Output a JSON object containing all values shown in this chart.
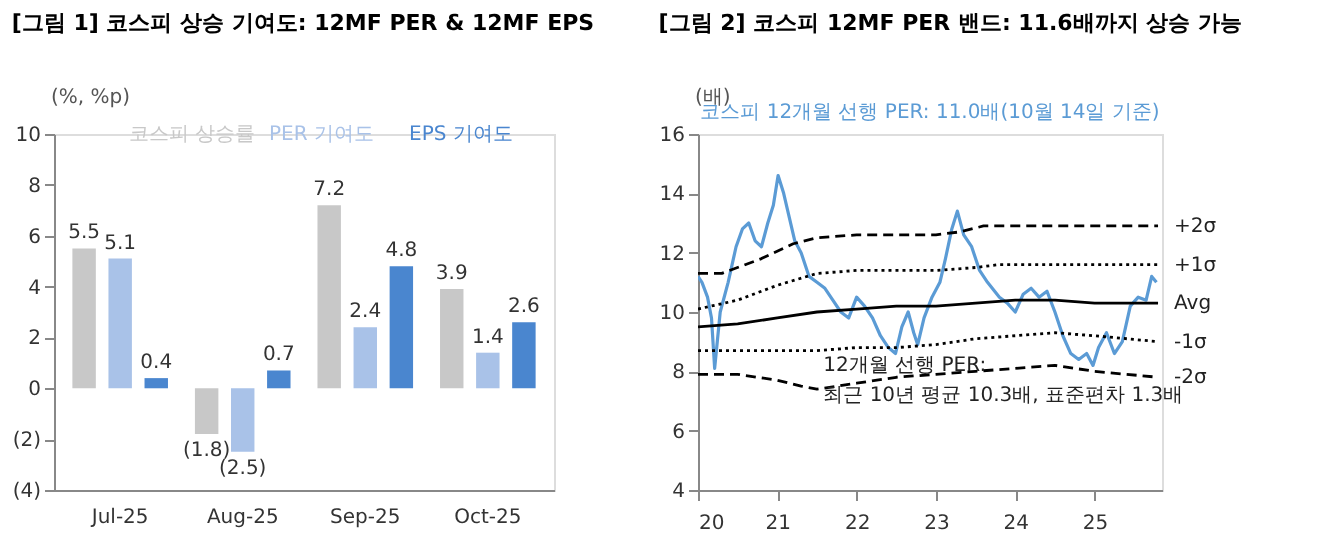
{
  "chart_data": [
    {
      "type": "bar",
      "title": "[그림 1] 코스피 상승 기여도: 12MF PER & 12MF EPS",
      "ylabel": "(%, %p)",
      "categories": [
        "Jul-25",
        "Aug-25",
        "Sep-25",
        "Oct-25"
      ],
      "series": [
        {
          "name": "코스피 상승률",
          "color": "#c8c8c8",
          "values": [
            5.5,
            -1.8,
            7.2,
            3.9
          ],
          "value_labels": [
            "5.5",
            "(1.8)",
            "7.2",
            "3.9"
          ]
        },
        {
          "name": "PER 기여도",
          "color": "#a9c2e8",
          "values": [
            5.1,
            -2.5,
            2.4,
            1.4
          ],
          "value_labels": [
            "5.1",
            "(2.5)",
            "2.4",
            "1.4"
          ]
        },
        {
          "name": "EPS 기여도",
          "color": "#4a86cf",
          "values": [
            0.4,
            0.7,
            4.8,
            2.6
          ],
          "value_labels": [
            "0.4",
            "0.7",
            "4.8",
            "2.6"
          ]
        }
      ],
      "ylim": [
        -4,
        10
      ],
      "yticks": [
        {
          "value": -4,
          "label": "(4)"
        },
        {
          "value": -2,
          "label": "(2)"
        },
        0,
        2,
        4,
        6,
        8,
        10
      ],
      "legend": "top",
      "grid": false
    },
    {
      "type": "line",
      "title": "[그림 2] 코스피 12MF PER 밴드: 11.6배까지 상승 가능",
      "ylabel": "(배)",
      "series": [
        {
          "name": "코스피 12개월 선행 PER: 11.0배(10월 14일 기준)",
          "color": "#5b9bd5",
          "line_style": "solid",
          "x": [
            2020.0,
            2020.05,
            2020.12,
            2020.17,
            2020.21,
            2020.28,
            2020.38,
            2020.48,
            2020.56,
            2020.64,
            2020.72,
            2020.8,
            2020.88,
            2020.95,
            2021.01,
            2021.08,
            2021.15,
            2021.22,
            2021.3,
            2021.4,
            2021.5,
            2021.6,
            2021.7,
            2021.8,
            2021.9,
            2022.0,
            2022.1,
            2022.2,
            2022.3,
            2022.4,
            2022.49,
            2022.57,
            2022.65,
            2022.72,
            2022.77,
            2022.85,
            2022.95,
            2023.05,
            2023.12,
            2023.2,
            2023.27,
            2023.35,
            2023.45,
            2023.55,
            2023.65,
            2023.8,
            2023.9,
            2024.0,
            2024.1,
            2024.2,
            2024.3,
            2024.4,
            2024.5,
            2024.6,
            2024.7,
            2024.8,
            2024.9,
            2024.98,
            2025.05,
            2025.15,
            2025.25,
            2025.35,
            2025.45,
            2025.55,
            2025.65,
            2025.72,
            2025.78
          ],
          "values": [
            11.2,
            11.0,
            10.5,
            9.8,
            8.1,
            10.0,
            11.0,
            12.2,
            12.8,
            13.0,
            12.4,
            12.2,
            13.0,
            13.6,
            14.6,
            14.0,
            13.2,
            12.4,
            12.0,
            11.2,
            11.0,
            10.8,
            10.4,
            10.0,
            9.8,
            10.5,
            10.2,
            9.8,
            9.2,
            8.8,
            8.6,
            9.5,
            10.0,
            9.3,
            8.9,
            9.8,
            10.5,
            11.0,
            11.8,
            12.8,
            13.4,
            12.6,
            12.2,
            11.4,
            11.0,
            10.5,
            10.3,
            10.0,
            10.6,
            10.8,
            10.5,
            10.7,
            10.0,
            9.2,
            8.6,
            8.4,
            8.6,
            8.2,
            8.8,
            9.3,
            8.6,
            9.0,
            10.2,
            10.5,
            10.4,
            11.2,
            11.0
          ]
        },
        {
          "name": "+2σ",
          "color": "#000000",
          "line_style": "dashed",
          "x": [
            2020.0,
            2020.3,
            2020.8,
            2021.2,
            2021.5,
            2022.0,
            2022.5,
            2023.0,
            2023.3,
            2023.6,
            2024.0,
            2024.5,
            2025.0,
            2025.8
          ],
          "values": [
            11.3,
            11.3,
            11.8,
            12.3,
            12.5,
            12.6,
            12.6,
            12.6,
            12.7,
            12.9,
            12.9,
            12.9,
            12.9,
            12.9
          ]
        },
        {
          "name": "+1σ",
          "color": "#000000",
          "line_style": "dotted",
          "x": [
            2020.0,
            2020.5,
            2021.0,
            2021.5,
            2022.0,
            2022.5,
            2023.0,
            2023.5,
            2023.8,
            2024.5,
            2025.0,
            2025.8
          ],
          "values": [
            10.1,
            10.4,
            10.9,
            11.3,
            11.4,
            11.4,
            11.4,
            11.5,
            11.6,
            11.6,
            11.6,
            11.6
          ]
        },
        {
          "name": "Avg",
          "color": "#000000",
          "line_style": "solid",
          "x": [
            2020.0,
            2020.5,
            2021.0,
            2021.5,
            2022.0,
            2022.5,
            2023.0,
            2023.5,
            2024.0,
            2024.5,
            2025.0,
            2025.8
          ],
          "values": [
            9.5,
            9.6,
            9.8,
            10.0,
            10.1,
            10.2,
            10.2,
            10.3,
            10.4,
            10.4,
            10.3,
            10.3
          ]
        },
        {
          "name": "-1σ",
          "color": "#000000",
          "line_style": "dotted",
          "x": [
            2020.0,
            2020.5,
            2021.0,
            2021.5,
            2022.0,
            2022.5,
            2023.0,
            2023.5,
            2024.0,
            2024.5,
            2025.0,
            2025.8
          ],
          "values": [
            8.7,
            8.7,
            8.7,
            8.7,
            8.8,
            8.8,
            8.9,
            9.1,
            9.2,
            9.3,
            9.2,
            9.0
          ]
        },
        {
          "name": "-2σ",
          "color": "#000000",
          "line_style": "dashed",
          "x": [
            2020.0,
            2020.5,
            2021.0,
            2021.3,
            2021.5,
            2022.0,
            2022.5,
            2023.0,
            2023.5,
            2024.0,
            2024.5,
            2025.0,
            2025.8
          ],
          "values": [
            7.9,
            7.9,
            7.7,
            7.5,
            7.4,
            7.6,
            7.8,
            7.9,
            8.0,
            8.1,
            8.2,
            8.0,
            7.8
          ]
        }
      ],
      "xlim": [
        2020,
        2025.85
      ],
      "xticks": [
        {
          "value": 2020,
          "label": "20"
        },
        {
          "value": 2021,
          "label": "21"
        },
        {
          "value": 2022,
          "label": "22"
        },
        {
          "value": 2023,
          "label": "23"
        },
        {
          "value": 2024,
          "label": "24"
        },
        {
          "value": 2025,
          "label": "25"
        }
      ],
      "ylim": [
        4,
        16
      ],
      "yticks": [
        4,
        6,
        8,
        10,
        12,
        14,
        16
      ],
      "annotations": [
        "12개월 선행 PER:\n최근 10년 평균 10.3배, 표준편차 1.3배"
      ],
      "legend": "top",
      "grid": false
    }
  ]
}
